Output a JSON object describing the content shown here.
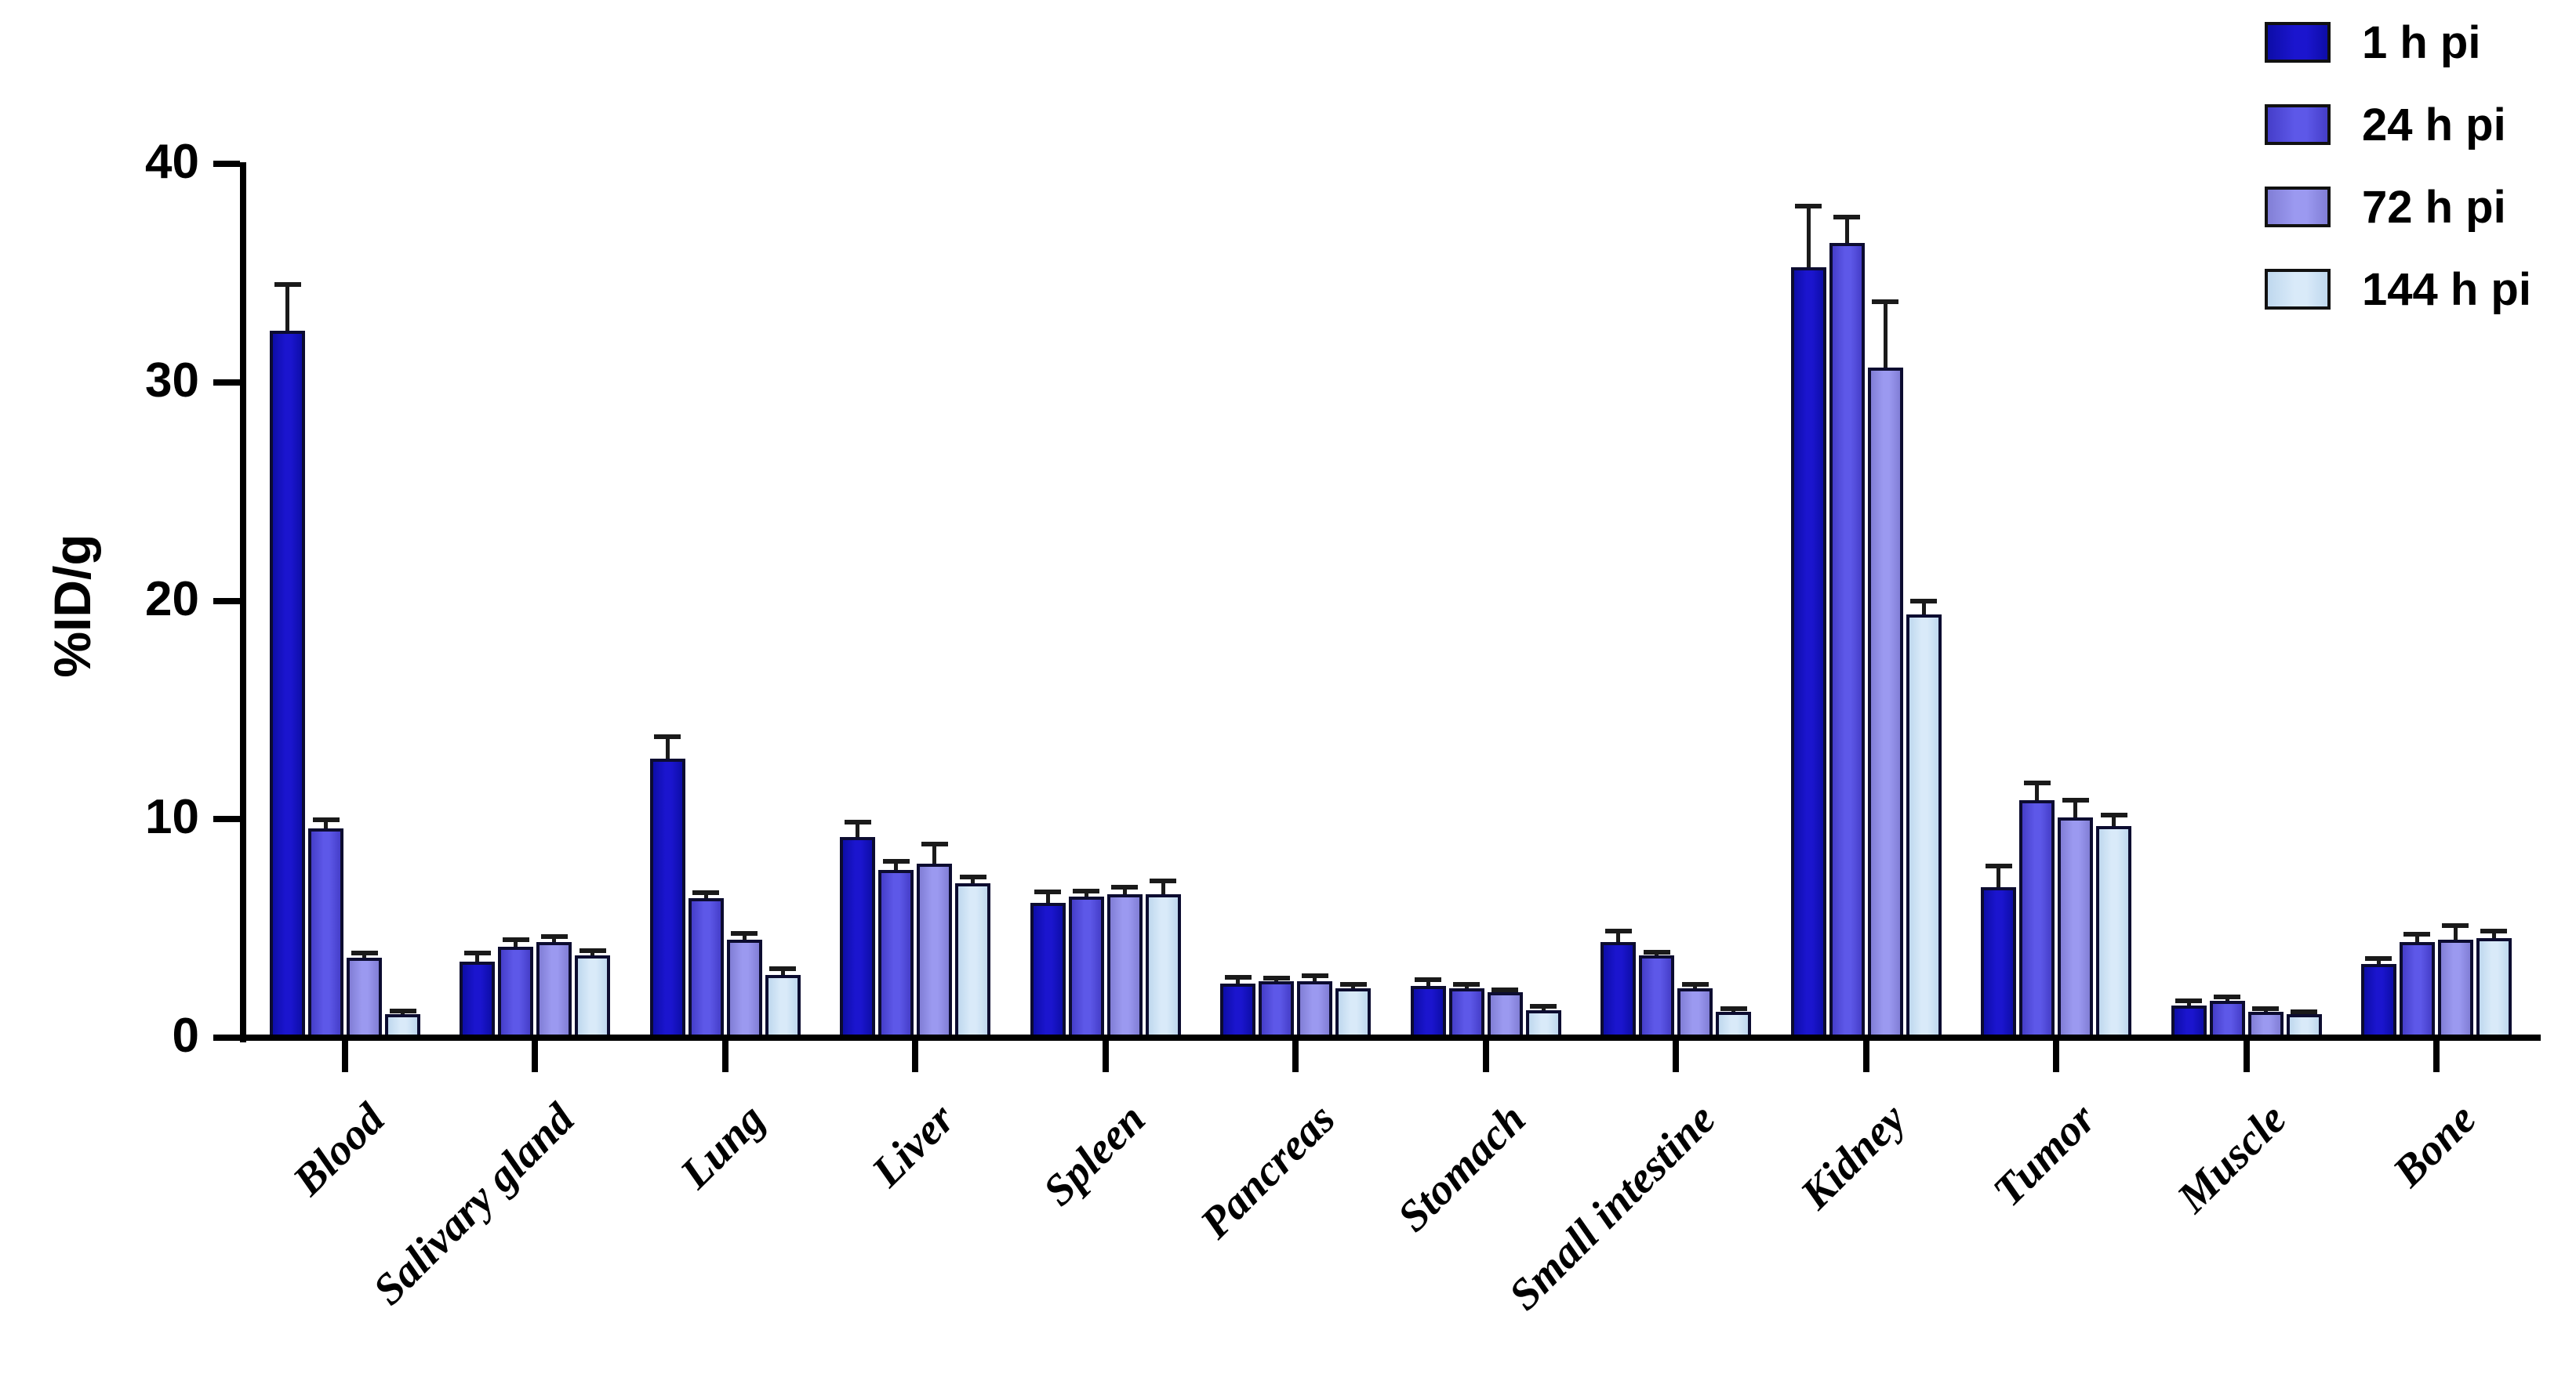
{
  "chart_data": {
    "type": "bar",
    "title": "",
    "xlabel": "",
    "ylabel": "%ID/g",
    "ylim": [
      0,
      40
    ],
    "yticks": [
      0,
      10,
      20,
      30,
      40
    ],
    "grid": false,
    "legend_position": "top-right",
    "error_bars": "upper, capped",
    "categories": [
      "Blood",
      "Salivary gland",
      "Lung",
      "Liver",
      "Spleen",
      "Pancreas",
      "Stomach",
      "Small intestine",
      "Kidney",
      "Tumor",
      "Muscle",
      "Bone"
    ],
    "series": [
      {
        "name": "1 h pi",
        "color": "#1414C4",
        "color_edge": "#0D0DA8",
        "color_mid": "#1B15CE",
        "values": [
          32.3,
          3.4,
          12.7,
          9.1,
          6.1,
          2.4,
          2.3,
          4.3,
          35.2,
          6.8,
          1.4,
          3.3
        ],
        "errors": [
          2.1,
          0.4,
          1.0,
          0.7,
          0.5,
          0.3,
          0.3,
          0.5,
          2.8,
          1.0,
          0.2,
          0.25
        ]
      },
      {
        "name": "24 h pi",
        "color": "#5852E0",
        "color_edge": "#453EC9",
        "color_mid": "#5D58E8",
        "values": [
          9.5,
          4.1,
          6.3,
          7.6,
          6.4,
          2.5,
          2.2,
          3.7,
          36.3,
          10.8,
          1.6,
          4.3
        ],
        "errors": [
          0.4,
          0.3,
          0.25,
          0.4,
          0.25,
          0.15,
          0.15,
          0.15,
          1.2,
          0.8,
          0.2,
          0.35
        ]
      },
      {
        "name": "72 h pi",
        "color": "#9693EC",
        "color_edge": "#817Ed6",
        "color_mid": "#9B99F0",
        "values": [
          3.6,
          4.3,
          4.4,
          7.9,
          6.5,
          2.5,
          2.0,
          2.2,
          30.6,
          10.0,
          1.1,
          4.4
        ],
        "errors": [
          0.2,
          0.25,
          0.3,
          0.9,
          0.3,
          0.25,
          0.1,
          0.15,
          3.0,
          0.8,
          0.15,
          0.65
        ]
      },
      {
        "name": "144 h pi",
        "color": "#D4E5F6",
        "color_edge": "#BFD8EE",
        "color_mid": "#D9EAF9",
        "values": [
          1.0,
          3.7,
          2.8,
          7.0,
          6.5,
          2.2,
          1.2,
          1.1,
          19.3,
          9.6,
          1.0,
          4.5
        ],
        "errors": [
          0.15,
          0.2,
          0.3,
          0.3,
          0.6,
          0.15,
          0.15,
          0.15,
          0.6,
          0.5,
          0.1,
          0.3
        ]
      }
    ]
  }
}
